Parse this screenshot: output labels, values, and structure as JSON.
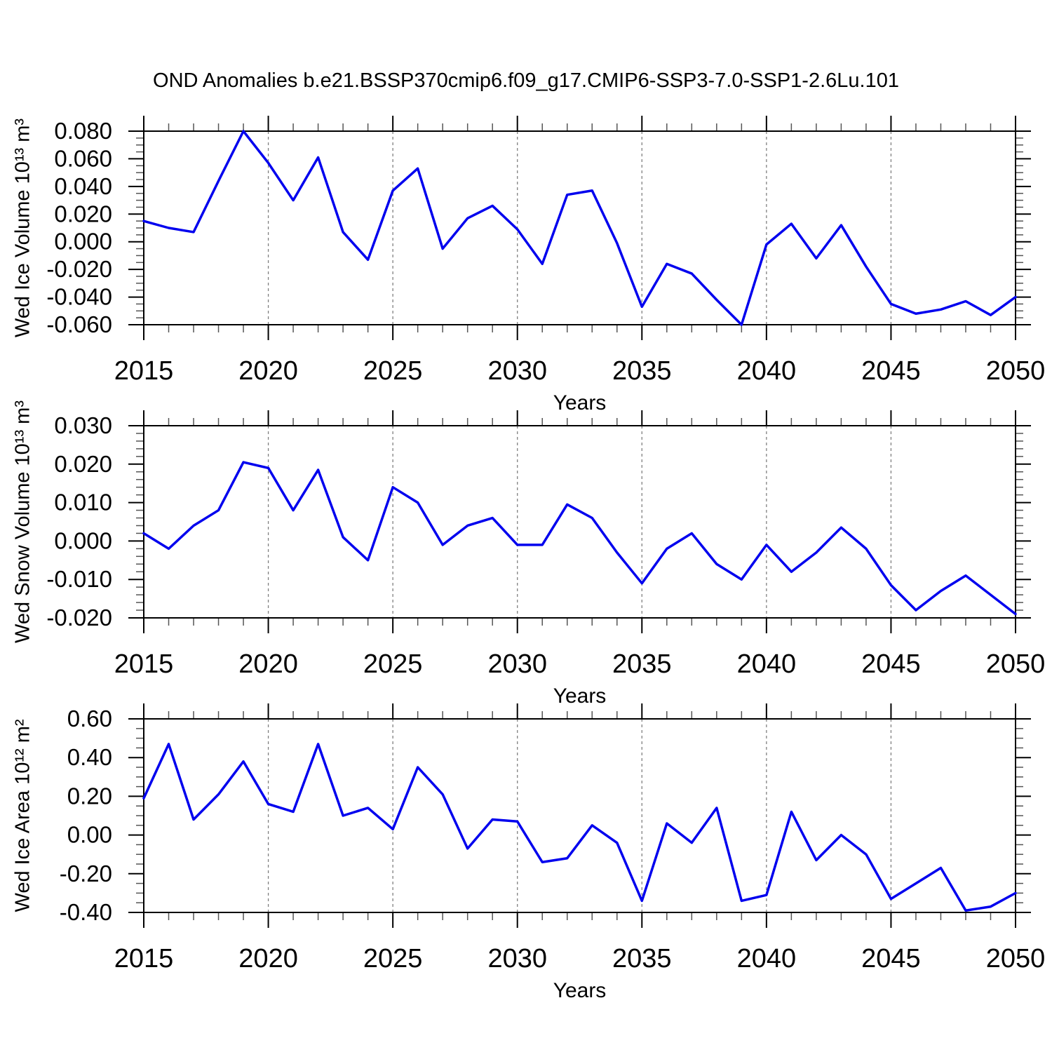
{
  "title": "OND Anomalies b.e21.BSSP370cmip6.f09_g17.CMIP6-SSP3-7.0-SSP1-2.6Lu.101",
  "colors": {
    "line": "#0000ee",
    "grid": "#808080",
    "axis": "#000000",
    "minor_tick": "#555555",
    "background": "#ffffff"
  },
  "chart_data": [
    {
      "type": "line",
      "name": "ice-volume",
      "ylabel": "Wed Ice Volume 10¹³ m³",
      "xlabel": "Years",
      "xlim": [
        2015,
        2050
      ],
      "ylim": [
        -0.06,
        0.08
      ],
      "grid": "vertical-dashed",
      "legend": "none",
      "x": [
        2015,
        2016,
        2017,
        2018,
        2019,
        2020,
        2021,
        2022,
        2023,
        2024,
        2025,
        2026,
        2027,
        2028,
        2029,
        2030,
        2031,
        2032,
        2033,
        2034,
        2035,
        2036,
        2037,
        2038,
        2039,
        2040,
        2041,
        2042,
        2043,
        2044,
        2045,
        2046,
        2047,
        2048,
        2049,
        2050
      ],
      "values": [
        0.015,
        0.01,
        0.007,
        0.044,
        0.08,
        0.057,
        0.03,
        0.061,
        0.007,
        -0.013,
        0.037,
        0.053,
        -0.005,
        0.017,
        0.026,
        0.009,
        -0.016,
        0.034,
        0.037,
        -0.001,
        -0.047,
        -0.016,
        -0.023,
        -0.042,
        -0.06,
        -0.002,
        0.013,
        -0.012,
        0.012,
        -0.018,
        -0.045,
        -0.052,
        -0.049,
        -0.043,
        -0.053,
        -0.04
      ],
      "ytick_values": [
        0.08,
        0.06,
        0.04,
        0.02,
        0.0,
        -0.02,
        -0.04,
        -0.06
      ],
      "ytick_labels": [
        "0.080",
        "0.060",
        "0.040",
        "0.020",
        "0.000",
        "-0.020",
        "-0.040",
        "-0.060"
      ],
      "ytick_major_step": 0.02,
      "ytick_minor_step": 0.005,
      "xtick_values": [
        2015,
        2020,
        2025,
        2030,
        2035,
        2040,
        2045,
        2050
      ],
      "xtick_labels": [
        "2015",
        "2020",
        "2025",
        "2030",
        "2035",
        "2040",
        "2045",
        "2050"
      ],
      "xtick_minor_step": 1,
      "grid_x": [
        2020,
        2025,
        2030,
        2035,
        2040,
        2045
      ]
    },
    {
      "type": "line",
      "name": "snow-volume",
      "ylabel": "Wed Snow Volume 10¹³ m³",
      "xlabel": "Years",
      "xlim": [
        2015,
        2050
      ],
      "ylim": [
        -0.02,
        0.03
      ],
      "grid": "vertical-dashed",
      "legend": "none",
      "x": [
        2015,
        2016,
        2017,
        2018,
        2019,
        2020,
        2021,
        2022,
        2023,
        2024,
        2025,
        2026,
        2027,
        2028,
        2029,
        2030,
        2031,
        2032,
        2033,
        2034,
        2035,
        2036,
        2037,
        2038,
        2039,
        2040,
        2041,
        2042,
        2043,
        2044,
        2045,
        2046,
        2047,
        2048,
        2049,
        2050
      ],
      "values": [
        0.002,
        -0.002,
        0.004,
        0.008,
        0.0205,
        0.019,
        0.008,
        0.0185,
        0.001,
        -0.005,
        0.014,
        0.01,
        -0.001,
        0.004,
        0.006,
        -0.001,
        -0.001,
        0.0095,
        0.006,
        -0.003,
        -0.011,
        -0.002,
        0.002,
        -0.006,
        -0.01,
        -0.001,
        -0.008,
        -0.003,
        0.0035,
        -0.002,
        -0.0115,
        -0.018,
        -0.013,
        -0.009,
        -0.014,
        -0.019
      ],
      "ytick_values": [
        0.03,
        0.02,
        0.01,
        0.0,
        -0.01,
        -0.02
      ],
      "ytick_labels": [
        "0.030",
        "0.020",
        "0.010",
        "0.000",
        "-0.010",
        "-0.020"
      ],
      "ytick_major_step": 0.01,
      "ytick_minor_step": 0.002,
      "xtick_values": [
        2015,
        2020,
        2025,
        2030,
        2035,
        2040,
        2045,
        2050
      ],
      "xtick_labels": [
        "2015",
        "2020",
        "2025",
        "2030",
        "2035",
        "2040",
        "2045",
        "2050"
      ],
      "xtick_minor_step": 1,
      "grid_x": [
        2020,
        2025,
        2030,
        2035,
        2040,
        2045
      ]
    },
    {
      "type": "line",
      "name": "ice-area",
      "ylabel": "Wed Ice Area 10¹² m²",
      "xlabel": "Years",
      "xlim": [
        2015,
        2050
      ],
      "ylim": [
        -0.4,
        0.6
      ],
      "grid": "vertical-dashed",
      "legend": "none",
      "x": [
        2015,
        2016,
        2017,
        2018,
        2019,
        2020,
        2021,
        2022,
        2023,
        2024,
        2025,
        2026,
        2027,
        2028,
        2029,
        2030,
        2031,
        2032,
        2033,
        2034,
        2035,
        2036,
        2037,
        2038,
        2039,
        2040,
        2041,
        2042,
        2043,
        2044,
        2045,
        2046,
        2047,
        2048,
        2049,
        2050
      ],
      "values": [
        0.19,
        0.47,
        0.08,
        0.21,
        0.38,
        0.16,
        0.12,
        0.47,
        0.1,
        0.14,
        0.03,
        0.35,
        0.21,
        -0.07,
        0.08,
        0.07,
        -0.14,
        -0.12,
        0.05,
        -0.04,
        -0.34,
        0.06,
        -0.04,
        0.14,
        -0.34,
        -0.31,
        0.12,
        -0.13,
        0.0,
        -0.1,
        -0.33,
        -0.25,
        -0.17,
        -0.39,
        -0.37,
        -0.3
      ],
      "ytick_values": [
        0.6,
        0.4,
        0.2,
        0.0,
        -0.2,
        -0.4
      ],
      "ytick_labels": [
        "0.60",
        "0.40",
        "0.20",
        "0.00",
        "-0.20",
        "-0.40"
      ],
      "ytick_major_step": 0.2,
      "ytick_minor_step": 0.05,
      "xtick_values": [
        2015,
        2020,
        2025,
        2030,
        2035,
        2040,
        2045,
        2050
      ],
      "xtick_labels": [
        "2015",
        "2020",
        "2025",
        "2030",
        "2035",
        "2040",
        "2045",
        "2050"
      ],
      "xtick_minor_step": 1,
      "grid_x": [
        2020,
        2025,
        2030,
        2035,
        2040,
        2045
      ]
    }
  ]
}
